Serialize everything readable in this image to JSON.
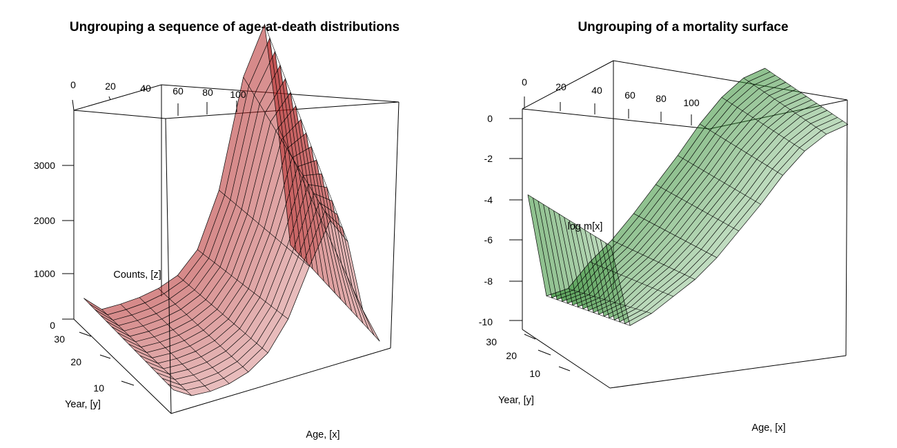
{
  "chart_data": [
    {
      "type": "surface3d",
      "title": "Ungrouping a sequence of age-at-death distributions",
      "xlabel": "Age, [x]",
      "ylabel": "Year, [y]",
      "zlabel": "Counts, [z]",
      "x_ticks": [
        "0",
        "20",
        "40",
        "60",
        "80",
        "100"
      ],
      "y_ticks": [
        "10",
        "20",
        "30"
      ],
      "z_ticks": [
        "0",
        "1000",
        "2000",
        "3000"
      ],
      "xlim": [
        0,
        110
      ],
      "ylim": [
        1,
        33
      ],
      "zlim": [
        0,
        4000
      ],
      "surface_color": "#b22222",
      "series": [
        {
          "name": "",
          "x": [
            0,
            10,
            20,
            30,
            40,
            50,
            60,
            70,
            80,
            90,
            100,
            110
          ],
          "y_first": [
            250,
            80,
            60,
            90,
            180,
            380,
            800,
            1500,
            2100,
            1700,
            600,
            50
          ],
          "y_last": [
            280,
            30,
            25,
            40,
            90,
            200,
            500,
            1300,
            2900,
            3600,
            2000,
            150
          ]
        }
      ]
    },
    {
      "type": "surface3d",
      "title": "Ungrouping of a mortality surface",
      "xlabel": "Age, [x]",
      "ylabel": "Year, [y]",
      "zlabel": "log m[x]",
      "x_ticks": [
        "0",
        "20",
        "40",
        "60",
        "80",
        "100"
      ],
      "y_ticks": [
        "10",
        "20",
        "30"
      ],
      "z_ticks": [
        "0",
        "-2",
        "-4",
        "-6",
        "-8",
        "-10"
      ],
      "xlim": [
        0,
        110
      ],
      "ylim": [
        1,
        33
      ],
      "zlim": [
        -11,
        0
      ],
      "surface_color": "#2e8b2e",
      "series": [
        {
          "name": "",
          "x": [
            0,
            10,
            20,
            30,
            40,
            50,
            60,
            70,
            80,
            90,
            100,
            110
          ],
          "y_first": [
            -5.2,
            -8.6,
            -8.2,
            -7.6,
            -7.0,
            -6.2,
            -5.2,
            -4.2,
            -3.1,
            -2.2,
            -1.6,
            -1.3
          ],
          "y_last": [
            -5.5,
            -9.8,
            -9.6,
            -8.6,
            -7.8,
            -6.8,
            -5.7,
            -4.6,
            -3.4,
            -2.4,
            -1.7,
            -1.4
          ]
        }
      ]
    }
  ]
}
